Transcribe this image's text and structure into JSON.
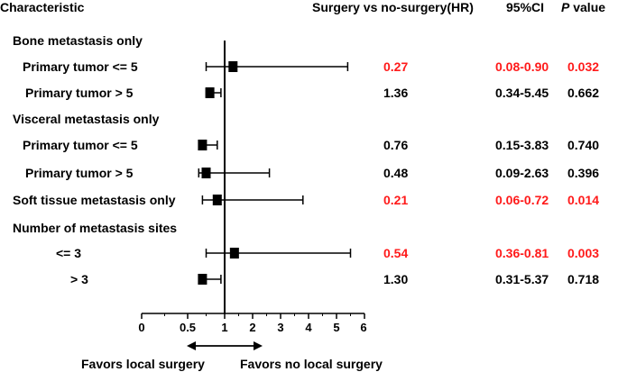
{
  "header": {
    "characteristic": "Characteristic",
    "hr": "Surgery vs no-surgery(HR)",
    "ci": "95%CI",
    "p_italic": "P",
    "p_rest": " value"
  },
  "groups": [
    "Bone metastasis only",
    "Visceral metastasis only",
    "Number of metastasis sites"
  ],
  "rows": [
    {
      "label": "Primary tumor <= 5",
      "hr": "0.27",
      "ci": "0.08-0.90",
      "p": "0.032",
      "significant": true
    },
    {
      "label": "Primary tumor > 5",
      "hr": "1.36",
      "ci": "0.34-5.45",
      "p": "0.662",
      "significant": false
    },
    {
      "label": "Primary tumor <= 5",
      "hr": "0.76",
      "ci": "0.15-3.83",
      "p": "0.740",
      "significant": false
    },
    {
      "label": "Primary tumor > 5",
      "hr": "0.48",
      "ci": "0.09-2.63",
      "p": "0.396",
      "significant": false
    },
    {
      "label": "Soft tissue metastasis only",
      "hr": "0.21",
      "ci": "0.06-0.72",
      "p": "0.014",
      "significant": true
    },
    {
      "label": "<= 3",
      "hr": "0.54",
      "ci": "0.36-0.81",
      "p": "0.003",
      "significant": true
    },
    {
      "label": "> 3",
      "hr": "1.30",
      "ci": "0.31-5.37",
      "p": "0.718",
      "significant": false
    }
  ],
  "footer": {
    "left": "Favors local surgery",
    "right": "Favors no local surgery"
  },
  "colors": {
    "significant": "#ff1a1a",
    "normal": "#000000"
  },
  "chart_data": {
    "type": "forest",
    "axis_ticks": [
      "0",
      "0.5",
      "1",
      "2",
      "3",
      "4",
      "5",
      "6"
    ],
    "reference_line": "1",
    "points": [
      {
        "point": 1.3,
        "low": 0.75,
        "high": 5.4
      },
      {
        "point": 0.8,
        "low": 0.75,
        "high": 0.95
      },
      {
        "point": 0.7,
        "low": 0.7,
        "high": 0.9
      },
      {
        "point": 0.75,
        "low": 0.65,
        "high": 2.6
      },
      {
        "point": 0.9,
        "low": 0.7,
        "high": 3.8
      },
      {
        "point": 1.35,
        "low": 0.75,
        "high": 5.5
      },
      {
        "point": 0.7,
        "low": 0.65,
        "high": 0.95
      }
    ]
  }
}
